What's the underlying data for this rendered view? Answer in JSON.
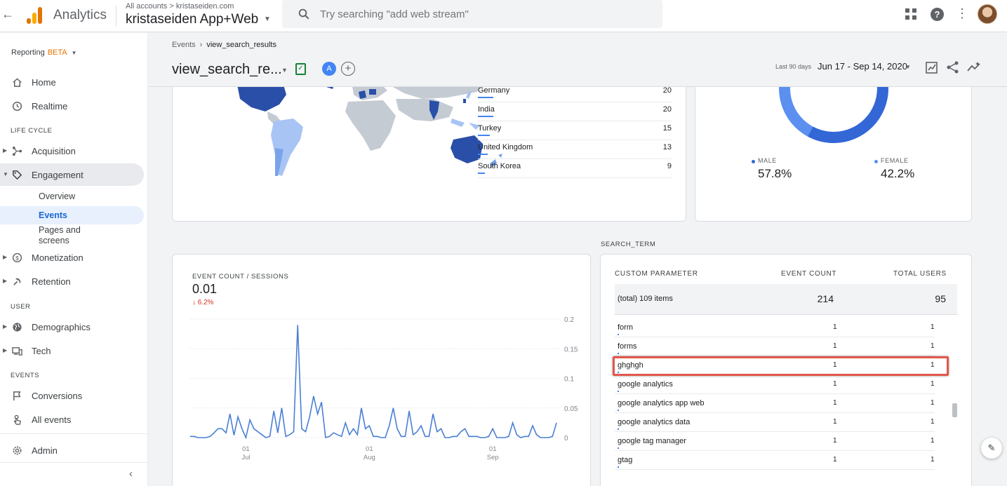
{
  "header": {
    "app_name": "Analytics",
    "account_crumb": "All accounts > kristaseiden.com",
    "property_name": "kristaseiden App+Web",
    "search_placeholder": "Try searching \"add web stream\""
  },
  "sidebar": {
    "reporting_label": "Reporting",
    "reporting_badge": "BETA",
    "items_top": [
      {
        "label": "Home",
        "icon": "home-icon"
      },
      {
        "label": "Realtime",
        "icon": "clock-icon"
      }
    ],
    "section_lifecycle": "LIFE CYCLE",
    "lifecycle_items": [
      {
        "label": "Acquisition",
        "icon": "acquisition-icon"
      },
      {
        "label": "Engagement",
        "icon": "tag-icon"
      }
    ],
    "engagement_sub": [
      {
        "label": "Overview"
      },
      {
        "label": "Events"
      },
      {
        "label": "Pages and screens"
      }
    ],
    "lifecycle_items_2": [
      {
        "label": "Monetization",
        "icon": "dollar-icon"
      },
      {
        "label": "Retention",
        "icon": "retention-icon"
      }
    ],
    "section_user": "USER",
    "user_items": [
      {
        "label": "Demographics",
        "icon": "globe-icon"
      },
      {
        "label": "Tech",
        "icon": "devices-icon"
      }
    ],
    "section_events": "EVENTS",
    "event_items": [
      {
        "label": "Conversions",
        "icon": "flag-icon"
      },
      {
        "label": "All events",
        "icon": "touch-icon"
      }
    ],
    "admin_label": "Admin"
  },
  "page": {
    "breadcrumb_parent": "Events",
    "breadcrumb_current": "view_search_results",
    "title": "view_search_re...",
    "compare_badge": "A",
    "date_label": "Last 90 days",
    "date_range": "Jun 17 - Sep 14, 2020"
  },
  "countries": [
    {
      "name": "Germany",
      "value": "20",
      "share": 1.0
    },
    {
      "name": "India",
      "value": "20",
      "share": 1.0
    },
    {
      "name": "Turkey",
      "value": "15",
      "share": 0.75
    },
    {
      "name": "United Kingdom",
      "value": "13",
      "share": 0.65
    },
    {
      "name": "South Korea",
      "value": "9",
      "share": 0.45
    }
  ],
  "gender": {
    "male_label": "MALE",
    "male_value": "57.8%",
    "female_label": "FEMALE",
    "female_value": "42.2%",
    "male_share": 0.578,
    "colors": {
      "male": "#3367d6",
      "female": "#5b8ff0"
    }
  },
  "metric": {
    "title": "EVENT COUNT / SESSIONS",
    "value": "0.01",
    "change": "6.2%"
  },
  "chart_data": {
    "type": "line",
    "y_ticks": [
      "0.2",
      "0.15",
      "0.1",
      "0.05",
      "0"
    ],
    "ylim": [
      0,
      0.2
    ],
    "x_ticks": [
      {
        "day": "01",
        "month": "Jul",
        "index": 14
      },
      {
        "day": "01",
        "month": "Aug",
        "index": 45
      },
      {
        "day": "01",
        "month": "Sep",
        "index": 76
      }
    ],
    "values": [
      0.002,
      0.002,
      0,
      0,
      0,
      0.002,
      0.008,
      0.015,
      0.015,
      0.008,
      0.04,
      0.004,
      0.035,
      0.015,
      0,
      0.03,
      0.015,
      0.01,
      0.005,
      0,
      0.002,
      0.045,
      0.008,
      0.05,
      0.002,
      0.005,
      0.01,
      0.19,
      0.015,
      0.01,
      0.035,
      0.07,
      0.04,
      0.06,
      0,
      0.002,
      0.008,
      0.005,
      0.002,
      0.025,
      0.005,
      0.015,
      0.005,
      0.05,
      0.015,
      0.02,
      0.002,
      0.002,
      0,
      0,
      0.02,
      0.05,
      0.015,
      0.002,
      0.002,
      0.045,
      0.005,
      0.01,
      0.02,
      0.002,
      0.002,
      0.04,
      0.01,
      0.015,
      0,
      0,
      0.002,
      0.002,
      0.01,
      0.015,
      0.002,
      0.002,
      0.002,
      0,
      0,
      0.002,
      0.015,
      0,
      0,
      0,
      0.002,
      0.025,
      0.005,
      0,
      0.002,
      0.002,
      0.02,
      0.005,
      0,
      0,
      0,
      0.002,
      0.025
    ],
    "color": "#4a7fd4"
  },
  "table": {
    "section_label": "SEARCH_TERM",
    "col_param": "CUSTOM PARAMETER",
    "col_events": "EVENT COUNT",
    "col_users": "TOTAL USERS",
    "total_label": "(total) 109 items",
    "total_events": "214",
    "total_users": "95",
    "rows": [
      {
        "term": "form",
        "events": "1",
        "users": "1"
      },
      {
        "term": "forms",
        "events": "1",
        "users": "1"
      },
      {
        "term": "ghghgh",
        "events": "1",
        "users": "1"
      },
      {
        "term": "google analytics",
        "events": "1",
        "users": "1"
      },
      {
        "term": "google analytics app web",
        "events": "1",
        "users": "1"
      },
      {
        "term": "google analytics data",
        "events": "1",
        "users": "1"
      },
      {
        "term": "google tag manager",
        "events": "1",
        "users": "1"
      },
      {
        "term": "gtag",
        "events": "1",
        "users": "1"
      }
    ]
  }
}
